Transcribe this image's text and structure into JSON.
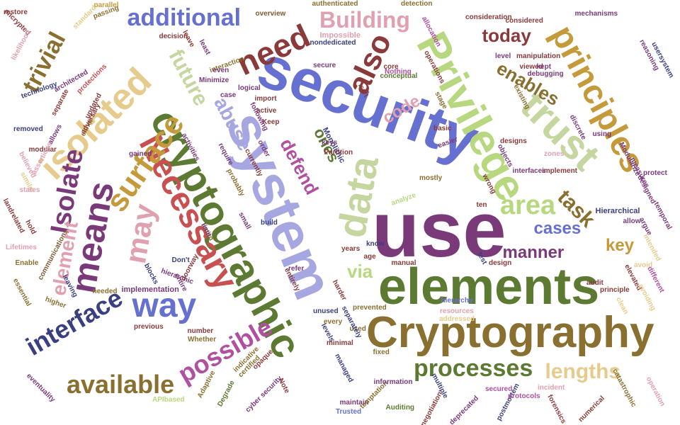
{
  "colors": {
    "blue": "#6670d0",
    "darkblue": "#3a3f80",
    "green": "#5c7a32",
    "olive": "#8a7030",
    "gold": "#c49a3a",
    "tan": "#e6cc8c",
    "red": "#c85050",
    "darkred": "#8a3a3a",
    "pink": "#e0a0b0",
    "purple": "#7a3a7a",
    "magenta": "#b050a0",
    "lightgreen": "#b8d880",
    "sage": "#c6d6a0",
    "lavender": "#a6a6e0",
    "brown": "#7a5a30"
  },
  "words": [
    {
      "text": "security",
      "color": "blue"
    },
    {
      "text": "system",
      "color": "lavender"
    },
    {
      "text": "use",
      "color": "purple"
    },
    {
      "text": "elements",
      "color": "green"
    },
    {
      "text": "Cryptography",
      "color": "olive"
    },
    {
      "text": "cryptographic",
      "color": "green"
    },
    {
      "text": "Privilege",
      "color": "lightgreen"
    },
    {
      "text": "Necessary",
      "color": "red"
    },
    {
      "text": "principles",
      "color": "gold"
    },
    {
      "text": "trust",
      "color": "sage"
    },
    {
      "text": "data",
      "color": "sage"
    },
    {
      "text": "means",
      "color": "purple"
    },
    {
      "text": "isolated",
      "color": "tan"
    },
    {
      "text": "surface",
      "color": "gold"
    },
    {
      "text": "also",
      "color": "darkred"
    },
    {
      "text": "need",
      "color": "darkred"
    },
    {
      "text": "additional",
      "color": "blue"
    },
    {
      "text": "Building",
      "color": "pink"
    },
    {
      "text": "trivial",
      "color": "olive"
    },
    {
      "text": "future",
      "color": "sage"
    },
    {
      "text": "today",
      "color": "darkred"
    },
    {
      "text": "enables",
      "color": "olive"
    },
    {
      "text": "code",
      "color": "pink"
    },
    {
      "text": "abuse",
      "color": "lavender"
    },
    {
      "text": "defend",
      "color": "magenta"
    },
    {
      "text": "ones",
      "color": "green"
    },
    {
      "text": "Isolate",
      "color": "purple"
    },
    {
      "text": "element",
      "color": "pink"
    },
    {
      "text": "may",
      "color": "pink"
    },
    {
      "text": "way",
      "color": "blue"
    },
    {
      "text": "interface",
      "color": "darkblue"
    },
    {
      "text": "possible",
      "color": "magenta"
    },
    {
      "text": "available",
      "color": "olive"
    },
    {
      "text": "processes",
      "color": "green"
    },
    {
      "text": "lengths",
      "color": "tan"
    },
    {
      "text": "area",
      "color": "lightgreen"
    },
    {
      "text": "task",
      "color": "olive"
    },
    {
      "text": "cases",
      "color": "blue"
    },
    {
      "text": "manner",
      "color": "purple"
    },
    {
      "text": "key",
      "color": "gold"
    },
    {
      "text": "via",
      "color": "lightgreen"
    },
    {
      "text": "Monolithic",
      "color": "darkblue"
    },
    {
      "text": "Hierarchical",
      "color": "darkblue"
    },
    {
      "text": "implementation",
      "color": "purple"
    },
    {
      "text": "authenticated",
      "color": "olive"
    },
    {
      "text": "detection",
      "color": "olive"
    },
    {
      "text": "Impossible",
      "color": "pink"
    },
    {
      "text": "nondedicated",
      "color": "darkblue"
    },
    {
      "text": "parallel",
      "color": "gold"
    },
    {
      "text": "passing",
      "color": "olive"
    },
    {
      "text": "standard",
      "color": "tan"
    },
    {
      "text": "overview",
      "color": "brown"
    },
    {
      "text": "allocation",
      "color": "magenta"
    },
    {
      "text": "consideration",
      "color": "darkred"
    },
    {
      "text": "considered",
      "color": "darkred"
    },
    {
      "text": "mechanisms",
      "color": "purple"
    },
    {
      "text": "manipulation",
      "color": "darkred"
    },
    {
      "text": "viewed",
      "color": "darkred"
    },
    {
      "text": "debugging",
      "color": "purple"
    },
    {
      "text": "reasoning",
      "color": "purple"
    },
    {
      "text": "usersystem",
      "color": "darkblue"
    },
    {
      "text": "technology",
      "color": "darkblue"
    },
    {
      "text": "architected",
      "color": "purple"
    },
    {
      "text": "protections",
      "color": "red"
    },
    {
      "text": "interaction",
      "color": "olive"
    },
    {
      "text": "conceptual",
      "color": "green"
    },
    {
      "text": "operations",
      "color": "darkred"
    },
    {
      "text": "resources",
      "color": "pink"
    },
    {
      "text": "hierarchy",
      "color": "blue"
    },
    {
      "text": "addressed",
      "color": "tan"
    },
    {
      "text": "previous",
      "color": "darkred"
    },
    {
      "text": "number",
      "color": "darkred"
    },
    {
      "text": "Whether",
      "color": "olive"
    },
    {
      "text": "entire",
      "color": "purple"
    },
    {
      "text": "hierarchic",
      "color": "purple"
    },
    {
      "text": "blocks",
      "color": "darkblue"
    },
    {
      "text": "needed",
      "color": "olive"
    },
    {
      "text": "leaving",
      "color": "darkblue"
    },
    {
      "text": "higher",
      "color": "olive"
    },
    {
      "text": "communications",
      "color": "brown"
    },
    {
      "text": "Lifetimes",
      "color": "pink"
    },
    {
      "text": "similar",
      "color": "tan"
    },
    {
      "text": "states",
      "color": "pink"
    },
    {
      "text": "believed",
      "color": "pink"
    },
    {
      "text": "removed",
      "color": "darkblue"
    },
    {
      "text": "modular",
      "color": "darkred"
    },
    {
      "text": "allows",
      "color": "purple"
    },
    {
      "text": "either",
      "color": "olive"
    },
    {
      "text": "assertions",
      "color": "pink"
    },
    {
      "text": "gained",
      "color": "purple"
    },
    {
      "text": "Enable",
      "color": "olive"
    },
    {
      "text": "essential",
      "color": "olive"
    },
    {
      "text": "eventuality",
      "color": "purple"
    },
    {
      "text": "APIbased",
      "color": "lightgreen"
    },
    {
      "text": "Adaptive",
      "color": "olive"
    },
    {
      "text": "Degrade",
      "color": "green"
    },
    {
      "text": "certified",
      "color": "olive"
    },
    {
      "text": "cyber security",
      "color": "purple"
    },
    {
      "text": "Note",
      "color": "darkred"
    },
    {
      "text": "opaque",
      "color": "darkred"
    },
    {
      "text": "indicative",
      "color": "olive"
    },
    {
      "text": "managed",
      "color": "darkblue"
    },
    {
      "text": "Trusted",
      "color": "blue"
    },
    {
      "text": "maintain",
      "color": "purple"
    },
    {
      "text": "temptation",
      "color": "olive"
    },
    {
      "text": "information",
      "color": "purple"
    },
    {
      "text": "Auditing",
      "color": "green"
    },
    {
      "text": "multiple",
      "color": "darkblue"
    },
    {
      "text": "negotiation",
      "color": "darkred"
    },
    {
      "text": "deprecated",
      "color": "purple"
    },
    {
      "text": "postmortem",
      "color": "darkblue"
    },
    {
      "text": "secured",
      "color": "magenta"
    },
    {
      "text": "protocols",
      "color": "magenta"
    },
    {
      "text": "incident",
      "color": "pink"
    },
    {
      "text": "forensics",
      "color": "darkred"
    },
    {
      "text": "numerical",
      "color": "darkred"
    },
    {
      "text": "catastrophic",
      "color": "olive"
    },
    {
      "text": "operation",
      "color": "pink"
    },
    {
      "text": "Modularize",
      "color": "purple"
    },
    {
      "text": "measures",
      "color": "purple"
    },
    {
      "text": "protect",
      "color": "purple"
    },
    {
      "text": "designed",
      "color": "purple"
    },
    {
      "text": "temporal",
      "color": "purple"
    },
    {
      "text": "allow",
      "color": "purple"
    },
    {
      "text": "argue",
      "color": "purple"
    },
    {
      "text": "intended",
      "color": "tan"
    },
    {
      "text": "avoid",
      "color": "tan"
    },
    {
      "text": "different",
      "color": "magenta"
    },
    {
      "text": "elevated",
      "color": "darkred"
    },
    {
      "text": "principle",
      "color": "darkred"
    },
    {
      "text": "clean",
      "color": "tan"
    },
    {
      "text": "avoiding",
      "color": "tan"
    },
    {
      "text": "audit",
      "color": "darkred"
    },
    {
      "text": "zones",
      "color": "pink"
    },
    {
      "text": "implement",
      "color": "darkred"
    },
    {
      "text": "interfaces",
      "color": "purple"
    },
    {
      "text": "designs",
      "color": "darkred"
    },
    {
      "text": "objects",
      "color": "purple"
    },
    {
      "text": "stage",
      "color": "olive"
    },
    {
      "text": "using",
      "color": "purple"
    },
    {
      "text": "discrete",
      "color": "purple"
    },
    {
      "text": "basic",
      "color": "darkred"
    },
    {
      "text": "easier",
      "color": "purple"
    },
    {
      "text": "mostly",
      "color": "olive"
    },
    {
      "text": "analyze",
      "color": "lightgreen"
    },
    {
      "text": "ten",
      "color": "darkred"
    },
    {
      "text": "wrong",
      "color": "darkred"
    },
    {
      "text": "test",
      "color": "darkblue"
    },
    {
      "text": "design",
      "color": "darkred"
    },
    {
      "text": "years",
      "color": "darkred"
    },
    {
      "text": "manual",
      "color": "darkred"
    },
    {
      "text": "know",
      "color": "darkblue"
    },
    {
      "text": "age",
      "color": "darkred"
    },
    {
      "text": "refer",
      "color": "purple"
    },
    {
      "text": "entirely",
      "color": "darkred"
    },
    {
      "text": "harder",
      "color": "darkred"
    },
    {
      "text": "prevented",
      "color": "olive"
    },
    {
      "text": "used",
      "color": "olive"
    },
    {
      "text": "fixed",
      "color": "olive"
    },
    {
      "text": "levels",
      "color": "darkblue"
    },
    {
      "text": "separately",
      "color": "darkblue"
    },
    {
      "text": "minimal",
      "color": "darkred"
    },
    {
      "text": "unused",
      "color": "darkblue"
    },
    {
      "text": "every",
      "color": "olive"
    },
    {
      "text": "listed",
      "color": "olive"
    },
    {
      "text": "small",
      "color": "purple"
    },
    {
      "text": "build",
      "color": "darkblue"
    },
    {
      "text": "doorway",
      "color": "darkred"
    },
    {
      "text": "limit",
      "color": "purple"
    },
    {
      "text": "Don't",
      "color": "darkblue"
    },
    {
      "text": "currently",
      "color": "darkred"
    },
    {
      "text": "order",
      "color": "purple"
    },
    {
      "text": "probably",
      "color": "olive"
    },
    {
      "text": "require",
      "color": "purple"
    },
    {
      "text": "activities",
      "color": "purple"
    },
    {
      "text": "active",
      "color": "darkred"
    },
    {
      "text": "Keep",
      "color": "darkred"
    },
    {
      "text": "following",
      "color": "purple"
    },
    {
      "text": "logical",
      "color": "purple"
    },
    {
      "text": "import",
      "color": "darkred"
    },
    {
      "text": "case",
      "color": "purple"
    },
    {
      "text": "even",
      "color": "purple"
    },
    {
      "text": "Minimize",
      "color": "purple"
    },
    {
      "text": "least",
      "color": "purple"
    },
    {
      "text": "leave",
      "color": "darkred"
    },
    {
      "text": "decision",
      "color": "darkred"
    },
    {
      "text": "secure",
      "color": "purple"
    },
    {
      "text": "core",
      "color": "darkred"
    },
    {
      "text": "Nothing",
      "color": "magenta"
    },
    {
      "text": "isn't",
      "color": "darkred"
    },
    {
      "text": "keys",
      "color": "purple"
    },
    {
      "text": "Partition",
      "color": "darkred"
    },
    {
      "text": "kept",
      "color": "purple"
    },
    {
      "text": "level",
      "color": "purple"
    },
    {
      "text": "existing",
      "color": "olive"
    },
    {
      "text": "restore",
      "color": "darkred"
    },
    {
      "text": "encrypted",
      "color": "darkred"
    },
    {
      "text": "likelihood",
      "color": "pink"
    },
    {
      "text": "separate",
      "color": "darkred"
    },
    {
      "text": "updated",
      "color": "darkred"
    },
    {
      "text": "adversary",
      "color": "darkred"
    },
    {
      "text": "landrelated",
      "color": "darkred"
    },
    {
      "text": "hold",
      "color": "darkred"
    }
  ]
}
